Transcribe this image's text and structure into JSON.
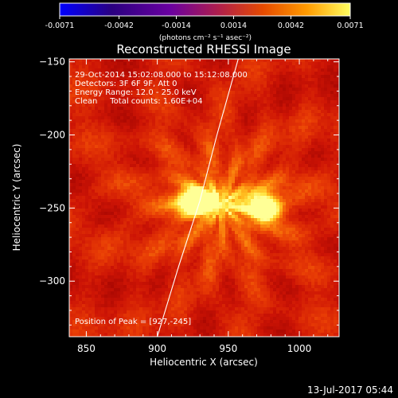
{
  "chart_data": {
    "type": "heatmap",
    "title": "Reconstructed RHESSI Image",
    "xlabel": "Heliocentric X (arcsec)",
    "ylabel": "Heliocentric Y (arcsec)",
    "xlim": [
      838,
      1028
    ],
    "ylim": [
      -338,
      -148
    ],
    "xticks": [
      850,
      900,
      950,
      1000
    ],
    "yticks": [
      -150,
      -200,
      -250,
      -300
    ],
    "colorbar": {
      "min": -0.0071,
      "max": 0.0071,
      "colormap": "hot/gnuplot",
      "ticks": [
        "-0.0071",
        "-0.0042",
        "-0.0014",
        "0.0014",
        "0.0042",
        "0.0071"
      ],
      "units_label": "(photons cm⁻² s⁻¹ asec⁻²)"
    },
    "info_lines": [
      "29-Oct-2014 15:02:08.000 to 15:12:08.000",
      "Detectors: 3F 6F 9F, Att 0",
      "Energy Range: 12.0 - 25.0 keV",
      "Clean     Total counts: 1.60E+04"
    ],
    "peak_label": "Position of Peak = [927,-245]",
    "sources": [
      {
        "x": 927,
        "y": -245,
        "intensity": 1.0
      },
      {
        "x": 976,
        "y": -250,
        "intensity": 0.93
      }
    ],
    "limb_curve": [
      [
        900,
        -338
      ],
      [
        915,
        -290
      ],
      [
        930,
        -245
      ],
      [
        942,
        -200
      ],
      [
        957,
        -148
      ]
    ],
    "timestamp": "13-Jul-2017 05:44"
  }
}
